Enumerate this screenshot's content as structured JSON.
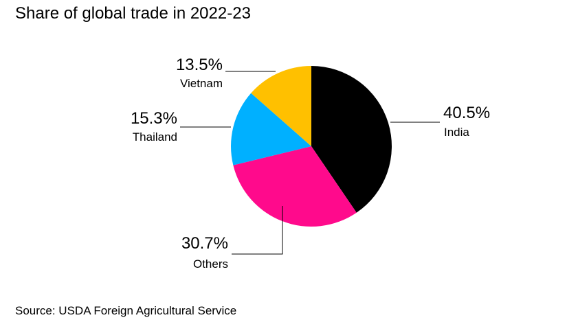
{
  "chart_data": {
    "type": "pie",
    "title": "Share of global trade in 2022-23",
    "categories": [
      "India",
      "Others",
      "Thailand",
      "Vietnam"
    ],
    "values": [
      40.5,
      30.7,
      15.3,
      13.5
    ],
    "value_labels": [
      "40.5%",
      "30.7%",
      "15.3%",
      "13.5%"
    ],
    "colors": [
      "#000000",
      "#ff0a8c",
      "#00b0ff",
      "#ffc000"
    ],
    "start_angle": "12 o'clock",
    "direction": "clockwise",
    "legend": "none (direct labels with leader lines)"
  },
  "source": "Source: USDA Foreign Agricultural Service"
}
